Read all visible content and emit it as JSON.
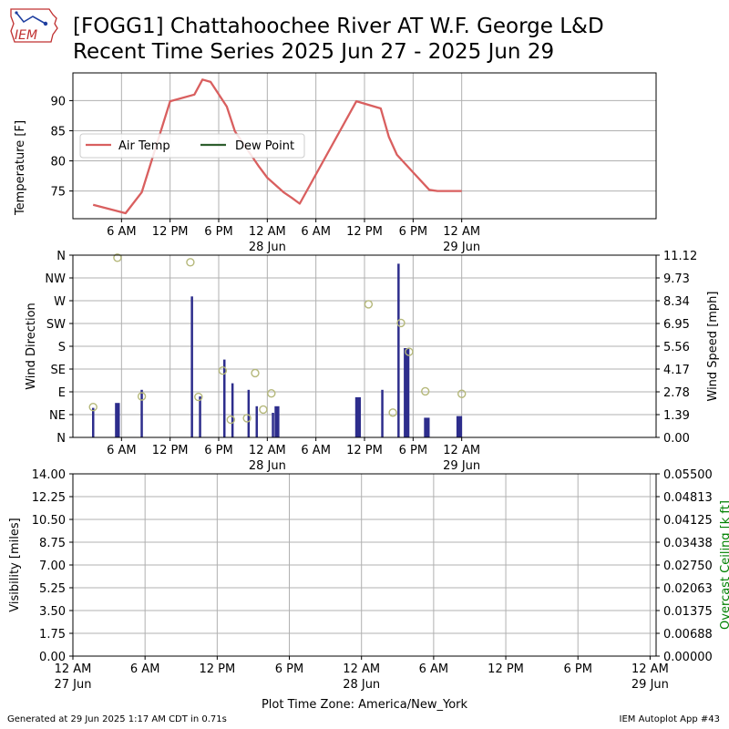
{
  "header": {
    "title_line1": "[FOGG1] Chattahoochee River  AT W.F. George L&D",
    "title_line2": "Recent Time Series 2025 Jun 27 - 2025 Jun 29",
    "logo_text": "IEM"
  },
  "footer": {
    "generated": "Generated at 29 Jun 2025 1:17 AM CDT in 0.71s",
    "app": "IEM Autoplot App #43"
  },
  "colors": {
    "air_temp": "#d95f5f",
    "dew_point": "#2e5e2e",
    "wind_speed_bar": "#2d2d8c",
    "wind_dir_marker": "#b5b87a",
    "ceiling_axis": "#008000",
    "grid": "#b0b0b0"
  },
  "chart_data": [
    {
      "id": "temperature",
      "type": "line",
      "ylabel": "Temperature [F]",
      "xlim": [
        0,
        72
      ],
      "ylim": [
        70.4,
        94.6
      ],
      "yticks": [
        75,
        80,
        85,
        90
      ],
      "xticks": [
        6,
        12,
        18,
        24,
        30,
        36,
        42,
        48
      ],
      "xtick_labels": [
        "6 AM",
        "12 PM",
        "6 PM",
        "12 AM",
        "6 AM",
        "12 PM",
        "6 PM",
        "12 AM"
      ],
      "xtick_sublabels": [
        "",
        "",
        "",
        "28 Jun",
        "",
        "",
        "",
        "29 Jun"
      ],
      "grid": true,
      "legend": {
        "placement": "center-left"
      },
      "series": [
        {
          "name": "Air Temp",
          "x": [
            2.5,
            6.5,
            8.5,
            12,
            15,
            16,
            17,
            19,
            20,
            23,
            24,
            26,
            27,
            28,
            35,
            38,
            39,
            40,
            42,
            44,
            45,
            48
          ],
          "y": [
            72.7,
            71.3,
            74.8,
            89.9,
            91.0,
            93.5,
            93.1,
            89.0,
            84.9,
            79.0,
            77.2,
            74.8,
            73.9,
            72.9,
            89.9,
            88.7,
            84.0,
            81.0,
            78.1,
            75.2,
            75.0,
            75.0
          ]
        },
        {
          "name": "Dew Point",
          "x": [],
          "y": []
        }
      ]
    },
    {
      "id": "wind",
      "type": "bar",
      "ylabel": "Wind Direction",
      "y2label": "Wind Speed [mph]",
      "xlim": [
        0,
        72
      ],
      "dir_ylim": [
        0,
        360
      ],
      "dir_ticks": [
        0,
        45,
        90,
        135,
        180,
        225,
        270,
        315,
        360
      ],
      "dir_tick_labels": [
        "N",
        "NE",
        "E",
        "SE",
        "S",
        "SW",
        "W",
        "NW",
        "N"
      ],
      "speed_ylim": [
        0,
        11.12
      ],
      "speed_tick_labels": [
        "0.00",
        "1.39",
        "2.78",
        "4.17",
        "5.56",
        "6.95",
        "8.34",
        "9.73",
        "11.12"
      ],
      "xticks": [
        6,
        12,
        18,
        24,
        30,
        36,
        42,
        48
      ],
      "xtick_labels": [
        "6 AM",
        "12 PM",
        "6 PM",
        "12 AM",
        "6 AM",
        "12 PM",
        "6 PM",
        "12 AM"
      ],
      "xtick_sublabels": [
        "",
        "",
        "",
        "28 Jun",
        "",
        "",
        "",
        "29 Jun"
      ],
      "grid": true,
      "wind_speed": {
        "x": [
          2.5,
          5.5,
          8.5,
          14.7,
          15.7,
          18.7,
          19.7,
          21.7,
          22.7,
          24.7,
          25.2,
          35.2,
          38.2,
          40.2,
          41.2,
          43.7,
          47.7
        ],
        "width": [
          0.2,
          0.6,
          0.2,
          0.2,
          0.2,
          0.2,
          0.2,
          0.2,
          0.2,
          0.2,
          0.6,
          0.7,
          0.2,
          0.2,
          0.7,
          0.7,
          0.7
        ],
        "y": [
          1.8,
          2.1,
          2.9,
          8.6,
          2.5,
          4.75,
          3.3,
          2.9,
          1.9,
          1.5,
          1.9,
          2.45,
          2.9,
          10.6,
          5.45,
          1.2,
          1.3
        ]
      },
      "wind_direction": {
        "x": [
          2.5,
          5.5,
          8.5,
          14.5,
          15.5,
          18.5,
          19.5,
          21.5,
          22.5,
          23.5,
          24.5,
          36.5,
          39.5,
          40.5,
          41.5,
          43.5,
          48.0
        ],
        "y": [
          60,
          355,
          81,
          346,
          80,
          132,
          35,
          38,
          127,
          55,
          87,
          263,
          49,
          226,
          169,
          91,
          86
        ]
      }
    },
    {
      "id": "visibility",
      "type": "line",
      "ylabel": "Visibility [miles]",
      "y2label": "Overcast Ceiling [k ft]",
      "xlim": [
        0,
        48.5
      ],
      "ylim": [
        0,
        14
      ],
      "yticks": [
        0,
        1.75,
        3.5,
        5.25,
        7,
        8.75,
        10.5,
        12.25,
        14
      ],
      "ytick_labels": [
        "0.00",
        "1.75",
        "3.50",
        "5.25",
        "7.00",
        "8.75",
        "10.50",
        "12.25",
        "14.00"
      ],
      "y2tick_labels": [
        "0.00000",
        "0.00688",
        "0.01375",
        "0.02063",
        "0.02750",
        "0.03438",
        "0.04125",
        "0.04813",
        "0.05500"
      ],
      "xticks": [
        0,
        6,
        12,
        18,
        24,
        30,
        36,
        42,
        48
      ],
      "xtick_labels": [
        "12 AM",
        "6 AM",
        "12 PM",
        "6 PM",
        "12 AM",
        "6 AM",
        "12 PM",
        "6 PM",
        "12 AM"
      ],
      "xtick_sublabels": [
        "27 Jun",
        "",
        "",
        "",
        "28 Jun",
        "",
        "",
        "",
        "29 Jun"
      ],
      "xlabel": "Plot Time Zone: America/New_York",
      "grid": true,
      "series": []
    }
  ]
}
